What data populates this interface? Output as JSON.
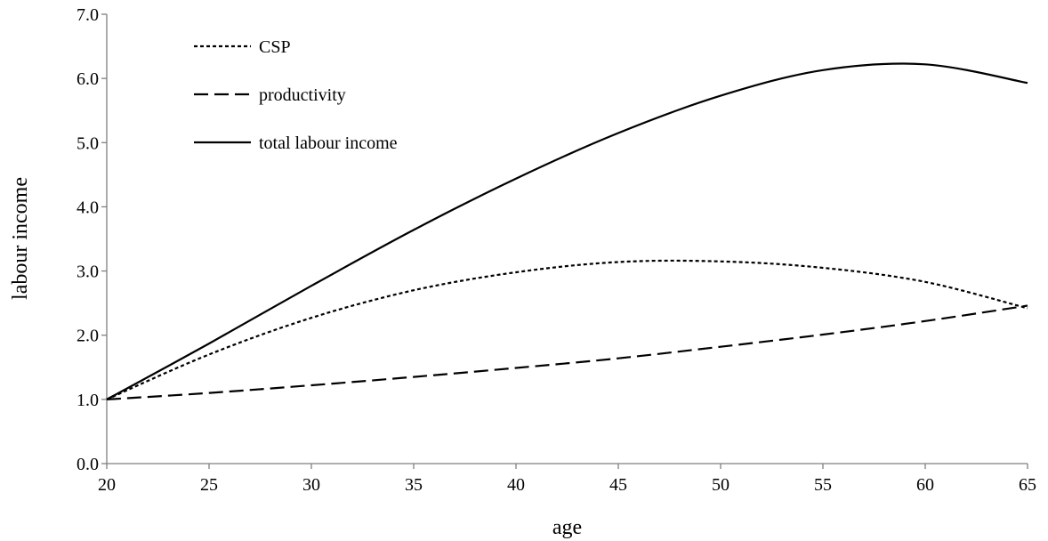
{
  "chart_data": {
    "type": "line",
    "title": "",
    "xlabel": "age",
    "ylabel": "labour income",
    "xlim": [
      20,
      65
    ],
    "ylim": [
      0,
      7
    ],
    "x_ticks": [
      "20",
      "25",
      "30",
      "35",
      "40",
      "45",
      "50",
      "55",
      "60",
      "65"
    ],
    "y_ticks": [
      "0.0",
      "1.0",
      "2.0",
      "3.0",
      "4.0",
      "5.0",
      "6.0",
      "7.0"
    ],
    "grid": false,
    "legend_position": "top-left",
    "x": [
      20,
      25,
      30,
      35,
      40,
      45,
      50,
      55,
      60,
      65
    ],
    "series": [
      {
        "name": "CSP",
        "style": "dotted",
        "color": "#000000",
        "values": [
          1.0,
          1.7,
          2.27,
          2.7,
          2.98,
          3.14,
          3.15,
          3.05,
          2.83,
          2.42
        ]
      },
      {
        "name": "productivity",
        "style": "dashed",
        "color": "#000000",
        "values": [
          1.0,
          1.1,
          1.22,
          1.35,
          1.49,
          1.64,
          1.82,
          2.01,
          2.22,
          2.46
        ]
      },
      {
        "name": "total labour income",
        "style": "solid",
        "color": "#000000",
        "values": [
          1.0,
          1.87,
          2.77,
          3.64,
          4.44,
          5.15,
          5.73,
          6.13,
          6.22,
          5.93
        ]
      }
    ]
  }
}
